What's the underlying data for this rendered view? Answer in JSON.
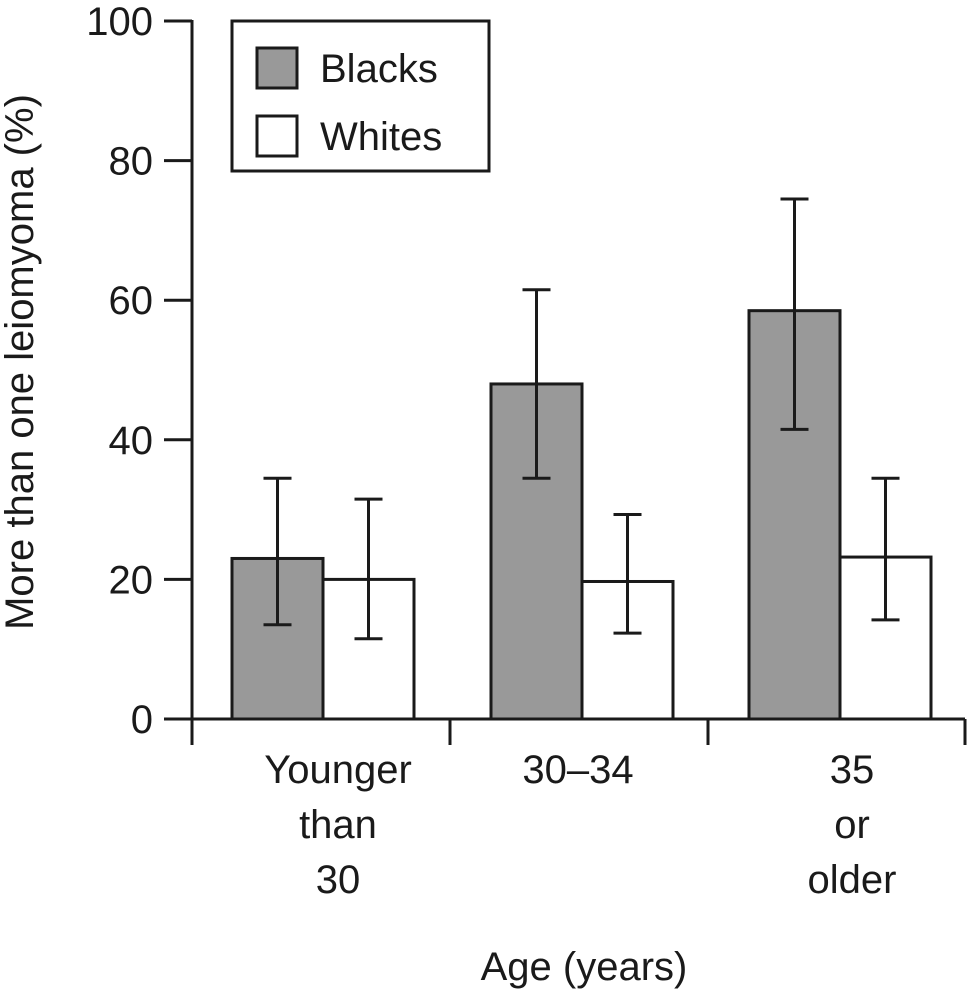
{
  "chart_data": {
    "type": "bar",
    "title": "",
    "xlabel": "Age (years)",
    "ylabel": "More than one leiomyoma (%)",
    "ylim": [
      0,
      100
    ],
    "yticks": [
      "0",
      "20",
      "40",
      "60",
      "80",
      "100"
    ],
    "categories": [
      [
        "Younger",
        "than",
        "30"
      ],
      [
        "30–34"
      ],
      [
        "35",
        "or",
        "older"
      ]
    ],
    "series": [
      {
        "name": "Blacks",
        "color": "#999999",
        "values": [
          23,
          48,
          58.5
        ],
        "error_low": [
          13.5,
          34.5,
          41.5
        ],
        "error_high": [
          34.5,
          61.5,
          74.5
        ]
      },
      {
        "name": "Whites",
        "color": "#ffffff",
        "values": [
          20,
          19.7,
          23.2
        ],
        "error_low": [
          11.5,
          12.3,
          14.2
        ],
        "error_high": [
          31.5,
          29.3,
          34.5
        ]
      }
    ],
    "legend": {
      "position": "top-left"
    }
  }
}
